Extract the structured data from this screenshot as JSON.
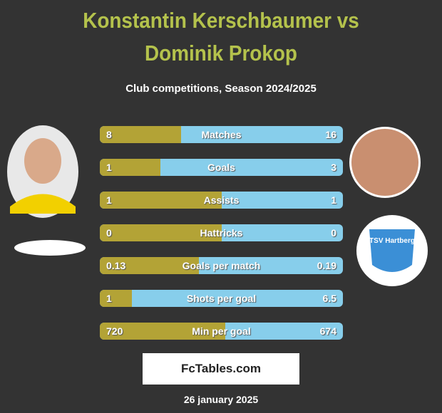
{
  "header": {
    "title": "Konstantin Kerschbaumer vs Dominik Prokop",
    "subtitle": "Club competitions, Season 2024/2025"
  },
  "stats": [
    {
      "label": "Matches",
      "left": 8,
      "right": 16
    },
    {
      "label": "Goals",
      "left": 1,
      "right": 3
    },
    {
      "label": "Assists",
      "left": 1,
      "right": 1
    },
    {
      "label": "Hattricks",
      "left": 0,
      "right": 0
    },
    {
      "label": "Goals per match",
      "left": 0.13,
      "right": 0.19
    },
    {
      "label": "Shots per goal",
      "left": 1,
      "right": 6.5
    },
    {
      "label": "Min per goal",
      "left": 720,
      "right": 674
    }
  ],
  "club_logo": {
    "text": "TSV Hartberg"
  },
  "brand": {
    "text": "FcTables.com"
  },
  "footer": {
    "date": "26 january 2025"
  }
}
